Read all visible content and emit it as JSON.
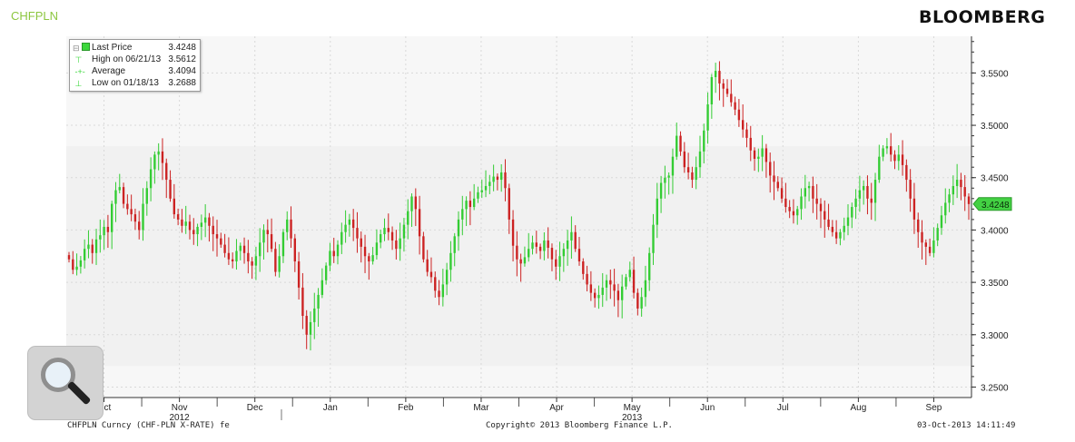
{
  "header": {
    "ticker": "CHFPLN",
    "brand": "BLOOMBERG"
  },
  "legend": {
    "items": [
      {
        "icon": "last-price-box",
        "label": "Last Price",
        "value": "3.4248"
      },
      {
        "icon": "high-marker",
        "label": "High on 06/21/13",
        "value": "3.5612"
      },
      {
        "icon": "average-marker",
        "label": "Average",
        "value": "3.4094"
      },
      {
        "icon": "low-marker",
        "label": "Low on 01/18/13",
        "value": "3.2688"
      }
    ]
  },
  "footer": {
    "left": "CHFPLN Curncy (CHF-PLN X-RATE) fe",
    "center": "Copyright© 2013 Bloomberg Finance L.P.",
    "right": "03-Oct-2013 14:11:49"
  },
  "zoom": {
    "icon": "magnifier-icon"
  },
  "chart_data": {
    "type": "candlestick",
    "x_labels": [
      "Oct",
      "Nov",
      "Dec",
      "Jan",
      "Feb",
      "Mar",
      "Apr",
      "May",
      "Jun",
      "Jul",
      "Aug",
      "Sep"
    ],
    "year_labels": [
      {
        "after": "Nov",
        "text": "2012"
      },
      {
        "after": "May",
        "text": "2013"
      }
    ],
    "y_ticks": [
      "3.5500",
      "3.5000",
      "3.4500",
      "3.4000",
      "3.3500",
      "3.3000",
      "3.2500"
    ],
    "ylim": [
      3.24,
      3.585
    ],
    "last_price": 3.4248,
    "high": 3.5612,
    "low": 3.2688,
    "average": 3.4094,
    "up_color": "#33cc33",
    "down_color": "#cc2222",
    "grid": true,
    "legend_position": "top-left",
    "band": [
      3.27,
      3.48
    ],
    "closes": [
      3.372,
      3.362,
      3.365,
      3.371,
      3.382,
      3.386,
      3.378,
      3.391,
      3.395,
      3.403,
      3.398,
      3.425,
      3.438,
      3.441,
      3.425,
      3.42,
      3.415,
      3.408,
      3.4,
      3.425,
      3.44,
      3.458,
      3.472,
      3.475,
      3.464,
      3.448,
      3.43,
      3.415,
      3.41,
      3.404,
      3.408,
      3.4,
      3.396,
      3.403,
      3.407,
      3.412,
      3.404,
      3.396,
      3.392,
      3.386,
      3.378,
      3.372,
      3.37,
      3.38,
      3.385,
      3.378,
      3.37,
      3.366,
      3.375,
      3.388,
      3.4,
      3.396,
      3.382,
      3.36,
      3.375,
      3.398,
      3.41,
      3.392,
      3.37,
      3.345,
      3.318,
      3.3,
      3.312,
      3.325,
      3.338,
      3.352,
      3.366,
      3.38,
      3.375,
      3.386,
      3.398,
      3.405,
      3.41,
      3.402,
      3.392,
      3.384,
      3.375,
      3.37,
      3.376,
      3.388,
      3.396,
      3.402,
      3.398,
      3.39,
      3.382,
      3.392,
      3.405,
      3.418,
      3.432,
      3.42,
      3.394,
      3.372,
      3.36,
      3.355,
      3.342,
      3.336,
      3.348,
      3.362,
      3.378,
      3.394,
      3.41,
      3.42,
      3.428,
      3.422,
      3.43,
      3.436,
      3.438,
      3.442,
      3.446,
      3.451,
      3.448,
      3.455,
      3.44,
      3.41,
      3.385,
      3.372,
      3.368,
      3.374,
      3.382,
      3.388,
      3.384,
      3.38,
      3.39,
      3.383,
      3.372,
      3.365,
      3.375,
      3.382,
      3.39,
      3.398,
      3.382,
      3.37,
      3.358,
      3.348,
      3.34,
      3.335,
      3.338,
      3.345,
      3.352,
      3.348,
      3.342,
      3.333,
      3.346,
      3.355,
      3.362,
      3.34,
      3.325,
      3.336,
      3.352,
      3.378,
      3.405,
      3.43,
      3.445,
      3.45,
      3.452,
      3.47,
      3.49,
      3.475,
      3.46,
      3.455,
      3.448,
      3.46,
      3.475,
      3.495,
      3.52,
      3.546,
      3.552,
      3.54,
      3.535,
      3.53,
      3.522,
      3.515,
      3.505,
      3.496,
      3.488,
      3.476,
      3.468,
      3.47,
      3.478,
      3.465,
      3.452,
      3.446,
      3.44,
      3.43,
      3.422,
      3.418,
      3.414,
      3.42,
      3.432,
      3.44,
      3.442,
      3.43,
      3.425,
      3.418,
      3.41,
      3.403,
      3.398,
      3.392,
      3.398,
      3.404,
      3.412,
      3.422,
      3.43,
      3.438,
      3.442,
      3.43,
      3.426,
      3.448,
      3.47,
      3.478,
      3.48,
      3.472,
      3.466,
      3.472,
      3.462,
      3.448,
      3.43,
      3.41,
      3.398,
      3.388,
      3.384,
      3.378,
      3.39,
      3.402,
      3.414,
      3.426,
      3.434,
      3.442,
      3.448,
      3.441,
      3.432,
      3.4248
    ],
    "dates_visible": "Oct 2012 – Sep 2013 (daily)"
  }
}
